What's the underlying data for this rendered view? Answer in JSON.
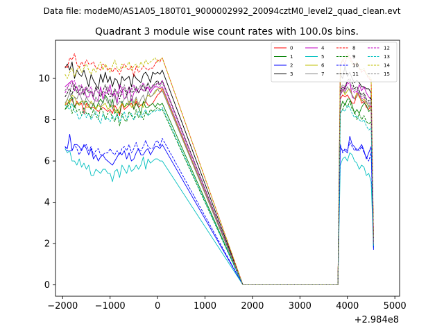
{
  "chart_data": {
    "type": "line",
    "suptitle": "Data file: modeM0/AS1A05_180T01_9000002992_20094cztM0_level2_quad_clean.evt",
    "title": "Quadrant 3 module wise count rates with 100.0s bins.",
    "xlabel": "",
    "ylabel": "",
    "x_offset_label": "+2.984e8",
    "xlim": [
      -2150,
      5100
    ],
    "ylim": [
      -0.55,
      11.85
    ],
    "xticks": [
      -2000,
      -1000,
      0,
      1000,
      2000,
      3000,
      4000,
      5000
    ],
    "xtick_labels": [
      "−2000",
      "−1000",
      "0",
      "1000",
      "2000",
      "3000",
      "4000",
      "5000"
    ],
    "yticks": [
      0,
      2,
      4,
      6,
      8,
      10
    ],
    "ytick_labels": [
      "0",
      "2",
      "4",
      "6",
      "8",
      "10"
    ],
    "x_start": -1950,
    "x_step": 50,
    "gap": {
      "start": 1800,
      "end": 3800
    },
    "x_end": 4800,
    "legend_placement": "top-right",
    "series": [
      {
        "name": "0",
        "color": "#ff0000",
        "style": "solid",
        "values": [
          8.7,
          8.8,
          8.9,
          9.0,
          8.6,
          8.9,
          8.7,
          8.8,
          8.3,
          8.8,
          8.6,
          8.6,
          8.6,
          8.5,
          8.4,
          8.5,
          8.6,
          8.5,
          8.4,
          8.5,
          8.3,
          8.7,
          8.5,
          8.2,
          8.8,
          8.5,
          8.6,
          8.7,
          8.8,
          8.5,
          8.9,
          8.6,
          8.7,
          8.8,
          8.9,
          8.7,
          8.7,
          8.8,
          9.0,
          9.2,
          9.3,
          9.5
        ],
        "tail": [
          9.0,
          9.2,
          9.1,
          9.2,
          9.0,
          8.8,
          8.8,
          9.3,
          9.2,
          8.8,
          8.9,
          8.6,
          8.5,
          8.7,
          2.4
        ]
      },
      {
        "name": "1",
        "color": "#008000",
        "style": "solid",
        "values": [
          8.5,
          8.7,
          9.0,
          9.1,
          8.6,
          8.8,
          8.8,
          8.9,
          8.8,
          8.9,
          8.7,
          8.5,
          8.8,
          8.5,
          8.8,
          9.0,
          8.8,
          9.2,
          9.0,
          8.6,
          9.0,
          8.3,
          8.5,
          8.3,
          8.9,
          8.6,
          8.8,
          8.7,
          9.0,
          8.5,
          8.8,
          8.6,
          8.3,
          8.9,
          8.6,
          8.6,
          8.7,
          8.8,
          8.6,
          8.8,
          8.7,
          8.8
        ],
        "tail": [
          8.5,
          8.9,
          8.7,
          9.0,
          9.0,
          8.7,
          8.3,
          8.5,
          8.3,
          8.6,
          8.8,
          8.7,
          8.4,
          8.5,
          2.3
        ]
      },
      {
        "name": "2",
        "color": "#0000ff",
        "style": "solid",
        "values": [
          6.7,
          6.6,
          7.3,
          6.5,
          6.8,
          6.8,
          6.7,
          6.5,
          6.8,
          6.6,
          6.3,
          6.6,
          6.1,
          6.3,
          6.0,
          6.2,
          6.3,
          6.1,
          6.0,
          5.9,
          5.8,
          6.0,
          6.2,
          6.4,
          6.3,
          6.5,
          6.1,
          6.4,
          6.0,
          6.1,
          6.4,
          6.6,
          6.3,
          6.3,
          6.5,
          6.6,
          6.3,
          6.5,
          6.7,
          6.7,
          6.6,
          6.8
        ],
        "tail": [
          6.7,
          6.5,
          6.5,
          6.4,
          7.2,
          6.8,
          6.7,
          6.5,
          6.6,
          6.8,
          6.5,
          6.1,
          6.4,
          6.7,
          1.7
        ]
      },
      {
        "name": "3",
        "color": "#000000",
        "style": "solid",
        "values": [
          10.5,
          10.7,
          10.4,
          10.8,
          10.0,
          10.4,
          10.2,
          10.1,
          10.4,
          10.0,
          9.6,
          10.2,
          9.9,
          9.7,
          9.5,
          10.2,
          9.8,
          10.3,
          9.8,
          10.1,
          9.6,
          10.0,
          9.9,
          9.5,
          10.1,
          9.9,
          10.0,
          10.1,
          9.6,
          10.2,
          10.0,
          9.9,
          9.8,
          10.2,
          10.3,
          10.1,
          9.8,
          10.3,
          10.2,
          10.3,
          10.2,
          10.4
        ],
        "tail": [
          10.2,
          10.0,
          10.6,
          10.1,
          10.3,
          10.0,
          9.8,
          9.9,
          9.8,
          9.6,
          9.6,
          9.5,
          9.5,
          9.3,
          1.9
        ]
      },
      {
        "name": "4",
        "color": "#c000c0",
        "style": "solid",
        "values": [
          9.6,
          9.7,
          9.8,
          9.9,
          9.4,
          9.6,
          9.2,
          9.3,
          9.5,
          9.1,
          9.1,
          9.4,
          9.0,
          8.9,
          8.9,
          9.6,
          9.0,
          9.3,
          9.3,
          9.7,
          9.1,
          9.3,
          8.8,
          9.7,
          9.5,
          9.0,
          9.1,
          9.6,
          8.9,
          9.3,
          9.5,
          9.3,
          9.5,
          9.4,
          9.4,
          9.6,
          9.3,
          9.5,
          9.6,
          9.6,
          9.5,
          9.6
        ],
        "tail": [
          9.2,
          9.4,
          9.6,
          9.8,
          9.9,
          9.1,
          9.0,
          9.3,
          9.7,
          9.4,
          9.6,
          9.3,
          9.1,
          9.0,
          2.2
        ]
      },
      {
        "name": "5",
        "color": "#00bfbf",
        "style": "solid",
        "values": [
          6.6,
          6.4,
          6.5,
          6.0,
          6.0,
          5.8,
          6.1,
          5.7,
          5.9,
          5.6,
          5.8,
          5.3,
          5.3,
          5.6,
          5.5,
          5.4,
          5.6,
          5.6,
          5.4,
          5.4,
          5.0,
          5.5,
          5.6,
          5.2,
          5.8,
          5.6,
          5.4,
          5.8,
          5.5,
          5.6,
          5.8,
          5.6,
          5.8,
          6.2,
          5.6,
          6.1,
          5.9,
          6.0,
          6.1,
          6.1,
          6.0,
          6.0
        ],
        "tail": [
          5.8,
          6.1,
          6.2,
          6.0,
          6.4,
          6.3,
          6.0,
          5.9,
          5.6,
          5.8,
          5.7,
          5.3,
          5.4,
          5.0,
          1.8
        ]
      },
      {
        "name": "6",
        "color": "#bfbf00",
        "style": "solid",
        "values": [
          8.7,
          9.0,
          8.8,
          9.2,
          9.1,
          8.8,
          8.7,
          8.9,
          8.9,
          8.6,
          8.6,
          8.9,
          8.7,
          8.5,
          8.7,
          8.6,
          8.7,
          8.8,
          8.5,
          8.6,
          8.7,
          8.5,
          8.3,
          8.6,
          8.8,
          8.6,
          8.7,
          8.9,
          8.6,
          8.7,
          9.0,
          8.8,
          8.7,
          8.6,
          9.0,
          9.2,
          9.1,
          9.2,
          9.3,
          9.5,
          9.5,
          9.5
        ],
        "tail": [
          9.3,
          9.5,
          9.2,
          9.4,
          9.5,
          9.2,
          9.0,
          9.3,
          9.1,
          8.9,
          9.0,
          8.8,
          8.7,
          8.5,
          2.2
        ]
      },
      {
        "name": "7",
        "color": "#808080",
        "style": "solid",
        "values": [
          8.8,
          9.0,
          9.3,
          8.9,
          9.1,
          9.0,
          9.3,
          9.0,
          8.7,
          9.1,
          8.9,
          8.8,
          8.7,
          9.1,
          8.9,
          8.6,
          8.9,
          9.1,
          8.8,
          9.0,
          8.5,
          9.2,
          8.7,
          8.9,
          8.8,
          9.0,
          9.2,
          8.7,
          9.2,
          8.8,
          9.1,
          8.7,
          9.0,
          9.2,
          8.8,
          9.4,
          9.1,
          9.2,
          9.4,
          9.5,
          9.3,
          9.4
        ],
        "tail": [
          9.2,
          9.5,
          9.3,
          9.6,
          9.4,
          9.2,
          9.0,
          9.1,
          9.4,
          9.0,
          8.8,
          8.9,
          8.6,
          8.9,
          2.1
        ]
      },
      {
        "name": "8",
        "color": "#ff0000",
        "style": "dashed",
        "values": [
          10.6,
          10.5,
          11.0,
          10.9,
          11.2,
          10.7,
          10.5,
          10.8,
          10.6,
          10.9,
          10.7,
          10.7,
          10.8,
          10.5,
          10.5,
          10.4,
          10.7,
          10.6,
          10.4,
          10.5,
          10.3,
          10.5,
          10.4,
          10.2,
          10.5,
          10.7,
          10.5,
          10.4,
          10.6,
          10.1,
          10.6,
          10.3,
          10.4,
          10.6,
          10.5,
          10.4,
          10.5,
          10.5,
          10.7,
          10.9,
          10.8,
          11.0
        ],
        "tail": [
          10.6,
          10.9,
          10.7,
          11.1,
          11.1,
          10.8,
          10.6,
          10.8,
          10.5,
          10.3,
          10.4,
          10.2,
          10.0,
          9.9,
          2.5
        ]
      },
      {
        "name": "9",
        "color": "#008000",
        "style": "dashed",
        "values": [
          8.5,
          8.6,
          8.8,
          8.3,
          8.7,
          8.4,
          8.5,
          8.2,
          8.6,
          8.3,
          8.3,
          8.1,
          8.5,
          8.2,
          8.0,
          8.6,
          8.4,
          8.0,
          8.3,
          8.4,
          8.1,
          7.9,
          8.3,
          7.7,
          8.3,
          8.0,
          7.9,
          8.4,
          8.2,
          8.0,
          8.5,
          8.1,
          8.3,
          8.0,
          8.4,
          8.2,
          8.5,
          8.4,
          8.5,
          8.6,
          8.5,
          8.5
        ],
        "tail": [
          8.3,
          8.5,
          8.8,
          8.6,
          8.9,
          8.5,
          8.4,
          8.0,
          8.3,
          8.0,
          8.2,
          7.9,
          7.8,
          7.9,
          2.2
        ]
      },
      {
        "name": "10",
        "color": "#0000ff",
        "style": "dashed",
        "values": [
          6.7,
          6.5,
          6.5,
          6.5,
          6.8,
          6.6,
          6.3,
          6.6,
          6.7,
          6.8,
          6.5,
          6.7,
          6.3,
          6.5,
          6.6,
          6.3,
          6.3,
          6.4,
          6.4,
          6.6,
          6.4,
          6.3,
          6.5,
          6.3,
          6.6,
          6.7,
          6.5,
          6.8,
          6.4,
          6.6,
          6.9,
          6.5,
          6.5,
          6.7,
          7.0,
          6.7,
          6.6,
          6.6,
          6.9,
          7.0,
          6.7,
          7.1
        ],
        "tail": [
          6.8,
          6.4,
          6.6,
          6.5,
          6.9,
          6.7,
          6.5,
          6.6,
          6.5,
          6.7,
          6.4,
          6.2,
          6.0,
          6.4,
          1.8
        ]
      },
      {
        "name": "11",
        "color": "#000000",
        "style": "dashed",
        "values": [
          9.1,
          9.3,
          9.5,
          9.2,
          9.7,
          9.3,
          9.4,
          9.6,
          9.2,
          9.5,
          9.3,
          9.4,
          9.1,
          9.6,
          9.3,
          9.1,
          9.4,
          9.7,
          9.3,
          9.1,
          9.2,
          9.5,
          9.3,
          9.0,
          9.4,
          9.5,
          9.2,
          9.6,
          9.3,
          9.4,
          9.6,
          9.3,
          9.5,
          9.7,
          9.4,
          9.8,
          9.5,
          9.6,
          9.8,
          9.9,
          9.7,
          9.9
        ],
        "tail": [
          9.4,
          9.6,
          9.5,
          9.9,
          10.0,
          9.8,
          9.5,
          9.6,
          9.4,
          9.2,
          9.3,
          9.0,
          8.9,
          9.1,
          2.1
        ]
      },
      {
        "name": "12",
        "color": "#c000c0",
        "style": "dashed",
        "values": [
          9.3,
          9.5,
          9.8,
          9.6,
          9.9,
          9.5,
          9.4,
          9.7,
          9.3,
          9.6,
          9.4,
          9.6,
          9.2,
          9.5,
          9.3,
          9.5,
          9.2,
          9.4,
          9.6,
          9.3,
          9.1,
          9.4,
          9.3,
          9.5,
          9.2,
          9.6,
          9.4,
          9.3,
          9.5,
          9.7,
          9.4,
          9.5,
          9.6,
          9.8,
          9.5,
          9.6,
          9.4,
          9.7,
          9.6,
          9.8,
          9.7,
          9.9
        ],
        "tail": [
          9.3,
          9.6,
          9.4,
          9.8,
          9.7,
          9.5,
          9.3,
          9.4,
          9.2,
          9.0,
          9.1,
          8.9,
          8.8,
          8.7,
          2.0
        ]
      },
      {
        "name": "13",
        "color": "#00bfbf",
        "style": "dashed",
        "values": [
          8.7,
          8.6,
          8.5,
          8.8,
          8.4,
          8.3,
          8.0,
          8.2,
          8.4,
          8.1,
          8.3,
          8.0,
          8.2,
          8.4,
          8.1,
          7.8,
          8.3,
          8.0,
          8.1,
          7.9,
          8.2,
          8.0,
          8.3,
          7.9,
          8.1,
          8.4,
          8.0,
          8.2,
          8.3,
          8.0,
          8.2,
          8.4,
          8.1,
          8.3,
          8.5,
          8.2,
          8.3,
          8.4,
          8.4,
          8.5,
          8.4,
          8.6
        ],
        "tail": [
          8.3,
          8.5,
          8.4,
          8.7,
          8.6,
          8.3,
          8.1,
          8.2,
          8.0,
          7.9,
          8.0,
          7.7,
          7.5,
          7.6,
          1.9
        ]
      },
      {
        "name": "14",
        "color": "#bfbf00",
        "style": "dashed",
        "values": [
          10.2,
          10.0,
          10.3,
          10.5,
          10.1,
          10.4,
          10.6,
          10.3,
          10.5,
          10.7,
          10.4,
          10.2,
          10.5,
          10.3,
          10.6,
          10.8,
          10.4,
          10.7,
          10.5,
          10.3,
          10.6,
          10.9,
          10.5,
          10.4,
          10.7,
          10.5,
          10.6,
          10.8,
          10.4,
          10.6,
          10.7,
          10.5,
          10.8,
          10.6,
          10.9,
          10.7,
          10.8,
          10.9,
          11.0,
          10.8,
          10.9,
          11.0
        ],
        "tail": [
          10.7,
          10.9,
          11.0,
          11.2,
          10.9,
          10.7,
          10.6,
          10.8,
          10.5,
          10.4,
          10.5,
          10.2,
          10.1,
          10.0,
          2.3
        ]
      },
      {
        "name": "15",
        "color": "#808080",
        "style": "dashed",
        "values": [
          9.4,
          9.6,
          9.3,
          9.8,
          9.5,
          9.4,
          9.7,
          9.2,
          9.5,
          9.6,
          9.3,
          9.4,
          9.1,
          9.5,
          9.6,
          9.2,
          9.4,
          9.3,
          9.6,
          9.4,
          9.1,
          9.5,
          9.2,
          9.3,
          9.5,
          9.7,
          9.3,
          9.5,
          9.4,
          9.6,
          9.3,
          9.5,
          9.7,
          9.4,
          9.6,
          9.8,
          9.5,
          9.6,
          9.7,
          9.8,
          9.6,
          9.8
        ],
        "tail": [
          9.5,
          9.7,
          9.6,
          9.9,
          9.8,
          9.6,
          9.4,
          9.5,
          9.3,
          9.1,
          9.2,
          8.9,
          8.8,
          9.0,
          2.0
        ]
      }
    ]
  }
}
